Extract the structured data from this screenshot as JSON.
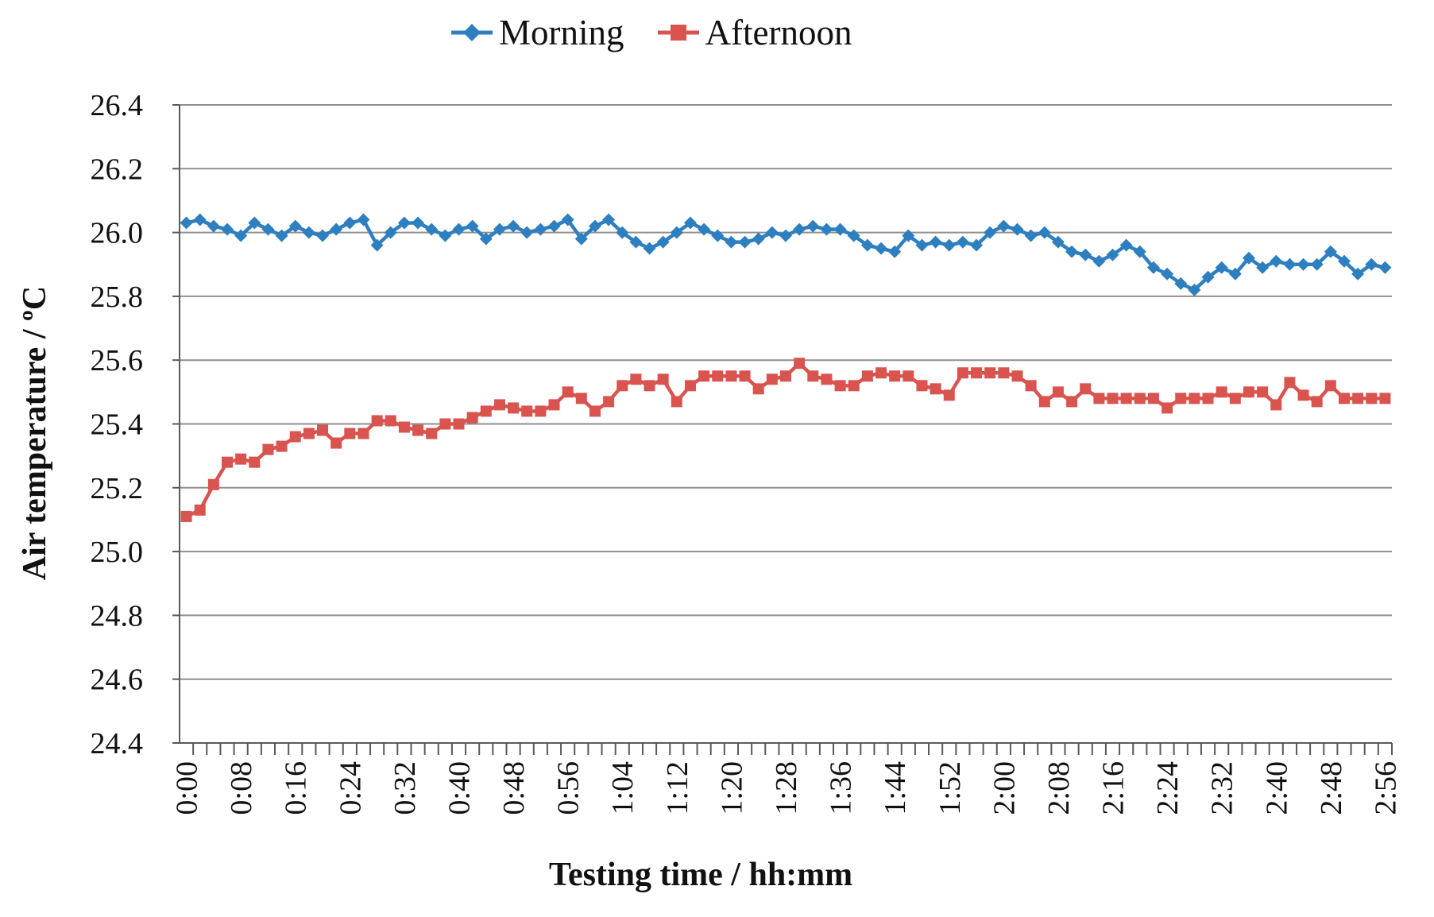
{
  "legend": {
    "items": [
      {
        "label": "Morning",
        "color": "#2E7FBF",
        "marker": "diamond"
      },
      {
        "label": "Afternoon",
        "color": "#D9534F",
        "marker": "square"
      }
    ]
  },
  "axes": {
    "y_title": "Air temperature / ºC",
    "x_title": "Testing time / hh:mm",
    "y_tick_labels": [
      "26.4",
      "26.2",
      "26.0",
      "25.8",
      "25.6",
      "25.4",
      "25.2",
      "25.0",
      "24.8",
      "24.6",
      "24.4"
    ],
    "x_tick_labels": [
      "0:00",
      "0:08",
      "0:16",
      "0:24",
      "0:32",
      "0:40",
      "0:48",
      "0:56",
      "1:04",
      "1:12",
      "1:20",
      "1:28",
      "1:36",
      "1:44",
      "1:52",
      "2:00",
      "2:08",
      "2:16",
      "2:24",
      "2:32",
      "2:40",
      "2:48",
      "2:56"
    ]
  },
  "colors": {
    "morning": "#2E7FBF",
    "afternoon": "#D9534F",
    "gridline": "#8F8F8F",
    "axis": "#595959",
    "text": "#111111"
  },
  "chart_data": {
    "type": "line",
    "title": "",
    "xlabel": "Testing time / hh:mm",
    "ylabel": "Air temperature / ºC",
    "ylim": [
      24.4,
      26.4
    ],
    "y_tick_step": 0.2,
    "grid": "horizontal",
    "legend_position": "top-center",
    "x_label_every_n_points": 4,
    "x": [
      "0:00",
      "0:02",
      "0:04",
      "0:06",
      "0:08",
      "0:10",
      "0:12",
      "0:14",
      "0:16",
      "0:18",
      "0:20",
      "0:22",
      "0:24",
      "0:26",
      "0:28",
      "0:30",
      "0:32",
      "0:34",
      "0:36",
      "0:38",
      "0:40",
      "0:42",
      "0:44",
      "0:46",
      "0:48",
      "0:50",
      "0:52",
      "0:54",
      "0:56",
      "0:58",
      "1:00",
      "1:02",
      "1:04",
      "1:06",
      "1:08",
      "1:10",
      "1:12",
      "1:14",
      "1:16",
      "1:18",
      "1:20",
      "1:22",
      "1:24",
      "1:26",
      "1:28",
      "1:30",
      "1:32",
      "1:34",
      "1:36",
      "1:38",
      "1:40",
      "1:42",
      "1:44",
      "1:46",
      "1:48",
      "1:50",
      "1:52",
      "1:54",
      "1:56",
      "1:58",
      "2:00",
      "2:02",
      "2:04",
      "2:06",
      "2:08",
      "2:10",
      "2:12",
      "2:14",
      "2:16",
      "2:18",
      "2:20",
      "2:22",
      "2:24",
      "2:26",
      "2:28",
      "2:30",
      "2:32",
      "2:34",
      "2:36",
      "2:38",
      "2:40",
      "2:42",
      "2:44",
      "2:46",
      "2:48",
      "2:50",
      "2:52",
      "2:54",
      "2:56"
    ],
    "series": [
      {
        "name": "Morning",
        "marker": "diamond",
        "color": "#2E7FBF",
        "values": [
          26.03,
          26.04,
          26.02,
          26.01,
          25.99,
          26.03,
          26.01,
          25.99,
          26.02,
          26.0,
          25.99,
          26.01,
          26.03,
          26.04,
          25.96,
          26.0,
          26.03,
          26.03,
          26.01,
          25.99,
          26.01,
          26.02,
          25.98,
          26.01,
          26.02,
          26.0,
          26.01,
          26.02,
          26.04,
          25.98,
          26.02,
          26.04,
          26.0,
          25.97,
          25.95,
          25.97,
          26.0,
          26.03,
          26.01,
          25.99,
          25.97,
          25.97,
          25.98,
          26.0,
          25.99,
          26.01,
          26.02,
          26.01,
          26.01,
          25.99,
          25.96,
          25.95,
          25.94,
          25.99,
          25.96,
          25.97,
          25.96,
          25.97,
          25.96,
          26.0,
          26.02,
          26.01,
          25.99,
          26.0,
          25.97,
          25.94,
          25.93,
          25.91,
          25.93,
          25.96,
          25.94,
          25.89,
          25.87,
          25.84,
          25.82,
          25.86,
          25.89,
          25.87,
          25.92,
          25.89,
          25.91,
          25.9,
          25.9,
          25.9,
          25.94,
          25.91,
          25.87,
          25.9,
          25.89
        ]
      },
      {
        "name": "Afternoon",
        "marker": "square",
        "color": "#D9534F",
        "values": [
          25.11,
          25.13,
          25.21,
          25.28,
          25.29,
          25.28,
          25.32,
          25.33,
          25.36,
          25.37,
          25.38,
          25.34,
          25.37,
          25.37,
          25.41,
          25.41,
          25.39,
          25.38,
          25.37,
          25.4,
          25.4,
          25.42,
          25.44,
          25.46,
          25.45,
          25.44,
          25.44,
          25.46,
          25.5,
          25.48,
          25.44,
          25.47,
          25.52,
          25.54,
          25.52,
          25.54,
          25.47,
          25.52,
          25.55,
          25.55,
          25.55,
          25.55,
          25.51,
          25.54,
          25.55,
          25.59,
          25.55,
          25.54,
          25.52,
          25.52,
          25.55,
          25.56,
          25.55,
          25.55,
          25.52,
          25.51,
          25.49,
          25.56,
          25.56,
          25.56,
          25.56,
          25.55,
          25.52,
          25.47,
          25.5,
          25.47,
          25.51,
          25.48,
          25.48,
          25.48,
          25.48,
          25.48,
          25.45,
          25.48,
          25.48,
          25.48,
          25.5,
          25.48,
          25.5,
          25.5,
          25.46,
          25.53,
          25.49,
          25.47,
          25.52,
          25.48,
          25.48,
          25.48,
          25.48
        ]
      }
    ]
  }
}
